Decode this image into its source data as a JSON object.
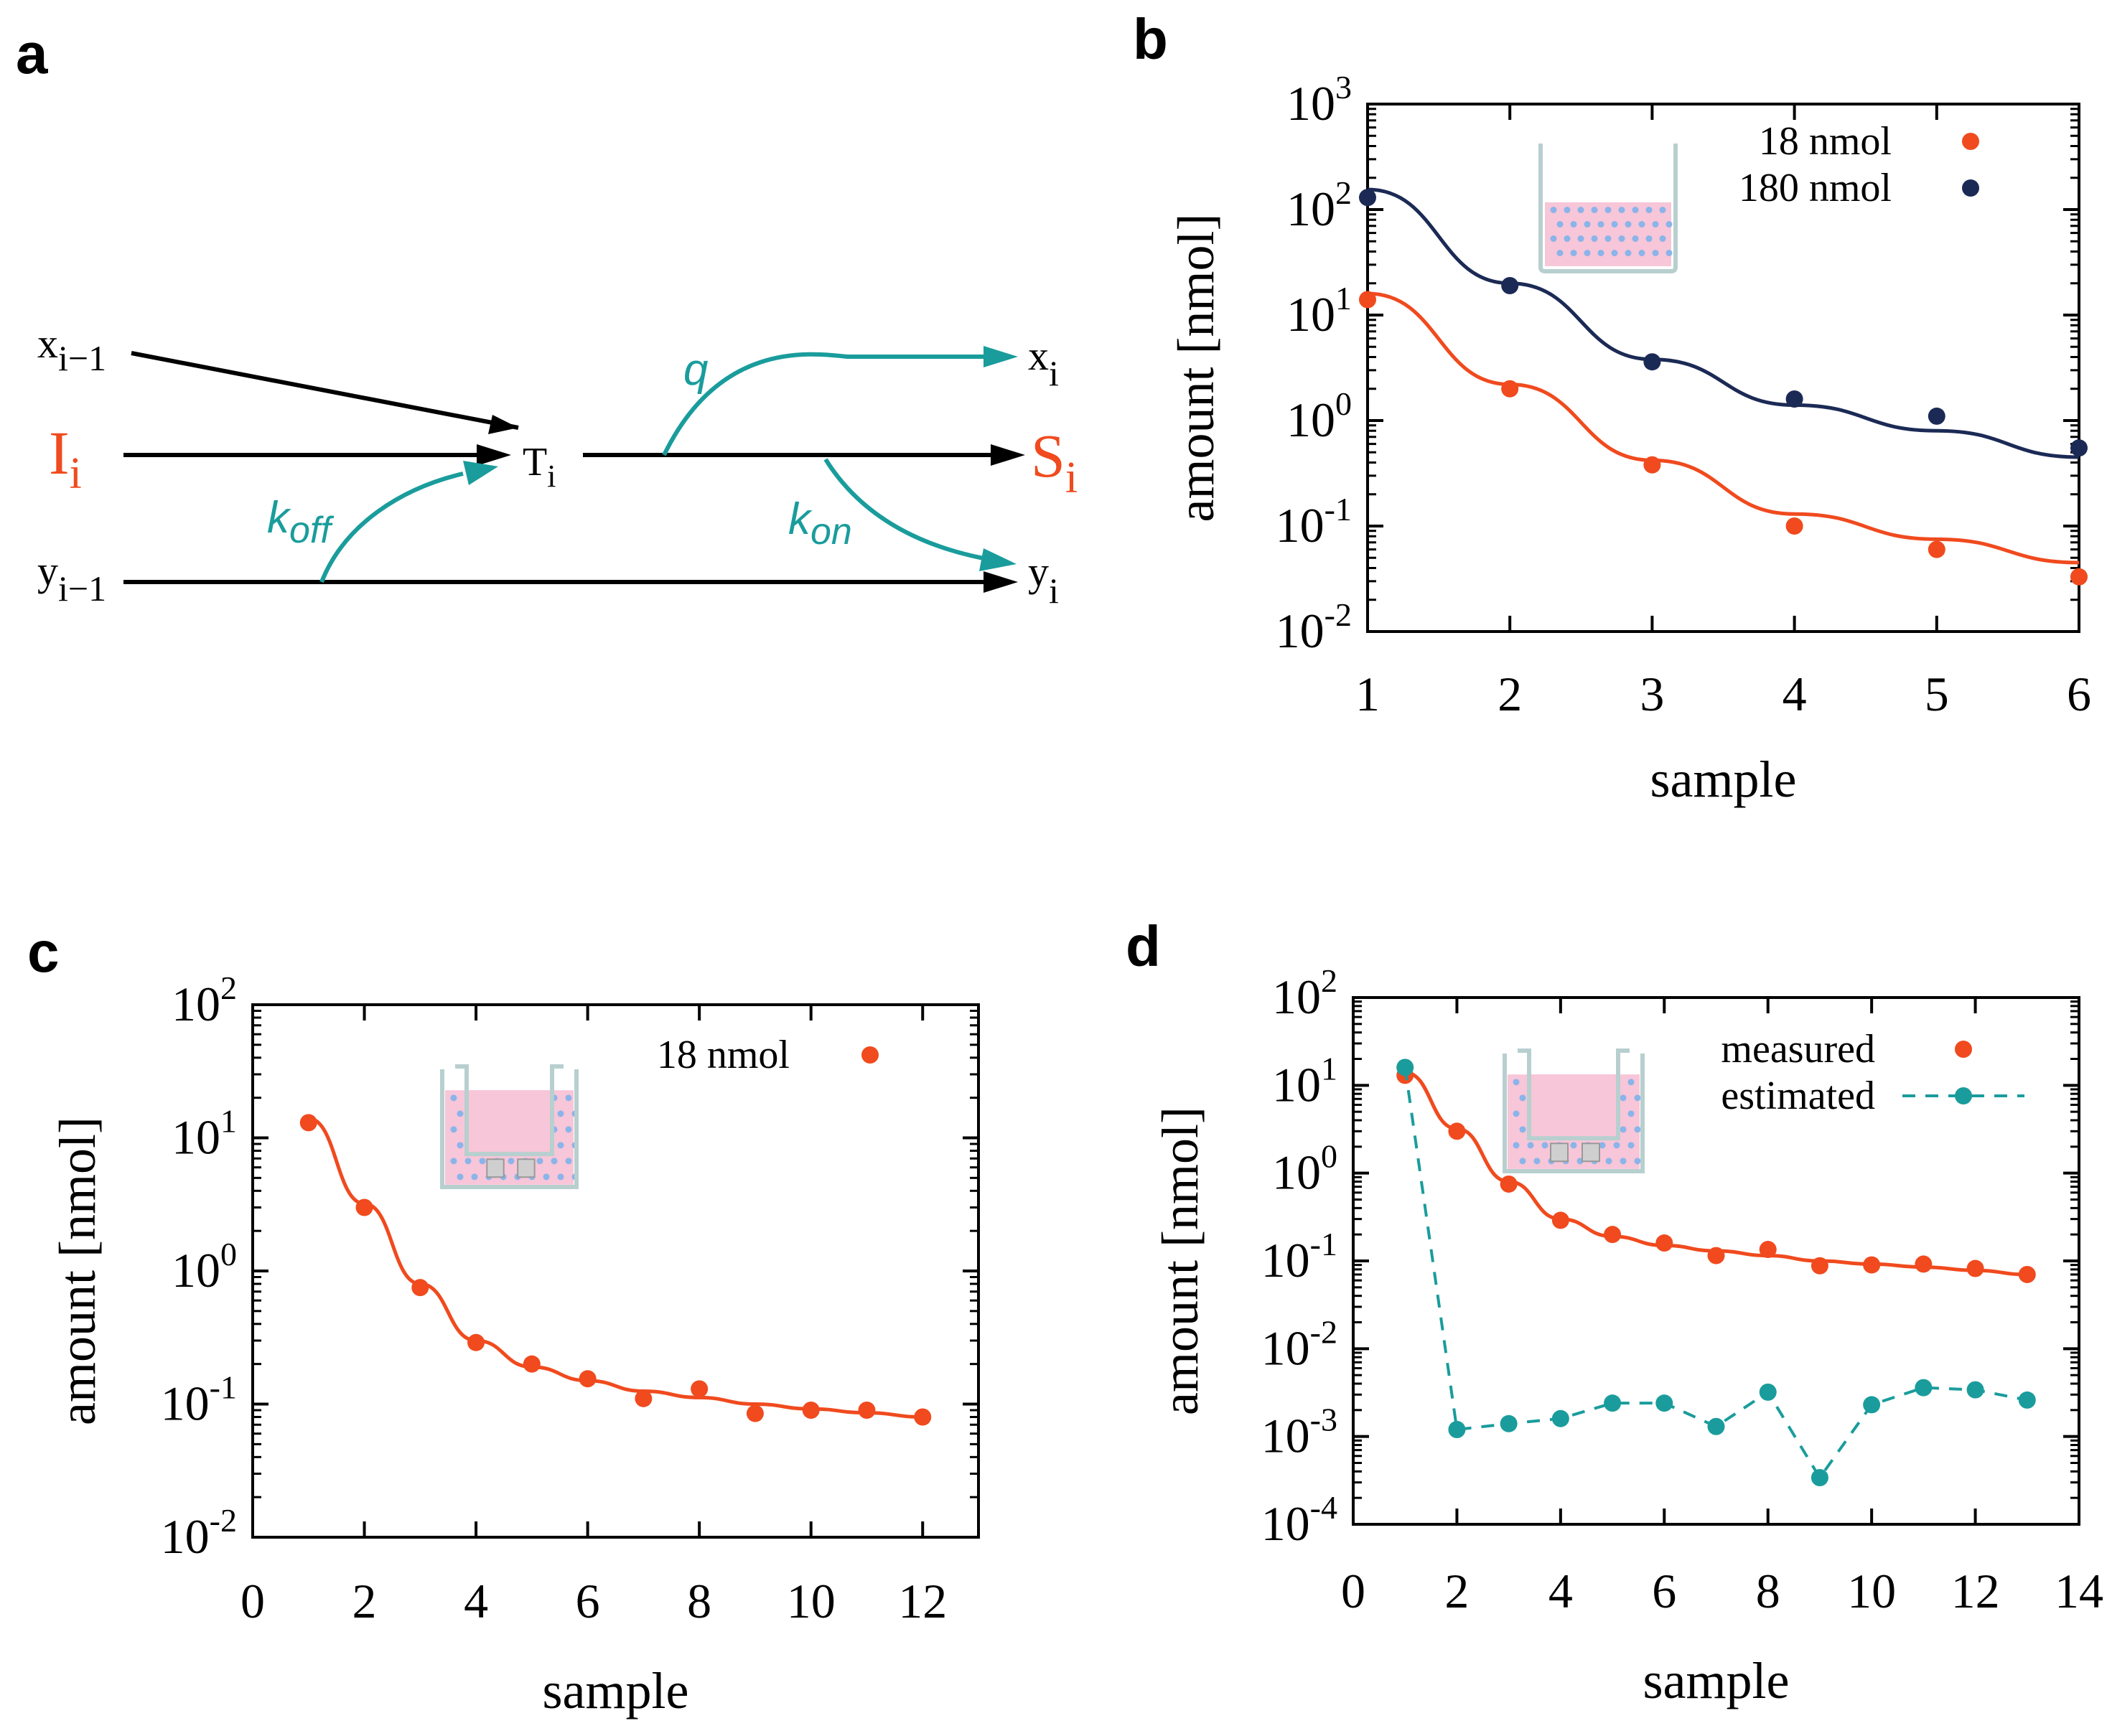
{
  "colors": {
    "red": "#f04a1e",
    "navy": "#1b2a55",
    "teal": "#1a9c9c",
    "black": "#000000",
    "beaker_liquid": "#f7c6d8",
    "beaker_dots": "#8ab4ea",
    "beaker_wall": "#b8cfcf"
  },
  "panels": {
    "a": {
      "letter": "a"
    },
    "b": {
      "letter": "b"
    },
    "c": {
      "letter": "c"
    },
    "d": {
      "letter": "d"
    }
  },
  "diagram": {
    "inputs": {
      "x_prev": {
        "base": "x",
        "sub": "i−1"
      },
      "I": {
        "base": "I",
        "sub": "i"
      },
      "y_prev": {
        "base": "y",
        "sub": "i−1"
      }
    },
    "center": {
      "base": "T",
      "sub": "i"
    },
    "outputs": {
      "x": {
        "base": "x",
        "sub": "i"
      },
      "S": {
        "base": "S",
        "sub": "i"
      },
      "y": {
        "base": "y",
        "sub": "i"
      }
    },
    "rates": {
      "q": "q",
      "koff": {
        "base": "k",
        "sub": "off"
      },
      "kon": {
        "base": "k",
        "sub": "on"
      }
    },
    "arrow_icon": "arrow-head-icon"
  },
  "chart_data": [
    {
      "panel": "b",
      "type": "scatter",
      "yscale": "log",
      "xlabel": "sample",
      "ylabel": "amount [nmol]",
      "xlim": [
        1,
        6
      ],
      "ylim_exp": [
        -2,
        3
      ],
      "xticks": [
        "1",
        "2",
        "3",
        "4",
        "5",
        "6"
      ],
      "yticks": [
        {
          "base": "10",
          "exp": "-2"
        },
        {
          "base": "10",
          "exp": "-1"
        },
        {
          "base": "10",
          "exp": "0"
        },
        {
          "base": "10",
          "exp": "1"
        },
        {
          "base": "10",
          "exp": "2"
        },
        {
          "base": "10",
          "exp": "3"
        }
      ],
      "legend_position": "top-right",
      "inset_icon": "beaker-icon",
      "series": [
        {
          "name": "18 nmol",
          "color": "#f04a1e",
          "marker": "dot",
          "x": [
            1,
            2,
            3,
            4,
            5,
            6
          ],
          "values": [
            14,
            2.0,
            0.38,
            0.1,
            0.06,
            0.033
          ],
          "fit": [
            16,
            2.2,
            0.42,
            0.13,
            0.075,
            0.045
          ]
        },
        {
          "name": "180 nmol",
          "color": "#1b2a55",
          "marker": "dot",
          "x": [
            1,
            2,
            3,
            4,
            5,
            6
          ],
          "values": [
            130,
            19,
            3.6,
            1.6,
            1.1,
            0.55
          ],
          "fit": [
            155,
            20,
            3.8,
            1.4,
            0.8,
            0.45
          ]
        }
      ]
    },
    {
      "panel": "c",
      "type": "scatter",
      "yscale": "log",
      "xlabel": "sample",
      "ylabel": "amount [nmol]",
      "xlim": [
        0,
        13
      ],
      "ylim_exp": [
        -2,
        2
      ],
      "xticks": [
        "0",
        "2",
        "4",
        "6",
        "8",
        "10",
        "12"
      ],
      "xtick_values": [
        0,
        2,
        4,
        6,
        8,
        10,
        12
      ],
      "yticks": [
        {
          "base": "10",
          "exp": "-2"
        },
        {
          "base": "10",
          "exp": "-1"
        },
        {
          "base": "10",
          "exp": "0"
        },
        {
          "base": "10",
          "exp": "1"
        },
        {
          "base": "10",
          "exp": "2"
        }
      ],
      "legend_position": "top-right",
      "inset_icon": "insert-beaker-icon",
      "series": [
        {
          "name": "18 nmol",
          "color": "#f04a1e",
          "marker": "dot",
          "x": [
            1,
            2,
            3,
            4,
            5,
            6,
            7,
            8,
            9,
            10,
            11,
            12
          ],
          "values": [
            13,
            3.0,
            0.75,
            0.29,
            0.2,
            0.155,
            0.11,
            0.13,
            0.085,
            0.09,
            0.09,
            0.08
          ],
          "fit": [
            14,
            3.2,
            0.8,
            0.3,
            0.19,
            0.15,
            0.125,
            0.112,
            0.1,
            0.092,
            0.086,
            0.08
          ]
        }
      ]
    },
    {
      "panel": "d",
      "type": "scatter",
      "yscale": "log",
      "xlabel": "sample",
      "ylabel": "amount [nmol]",
      "xlim": [
        0,
        14
      ],
      "ylim_exp": [
        -4,
        2
      ],
      "xticks": [
        "0",
        "2",
        "4",
        "6",
        "8",
        "10",
        "12",
        "14"
      ],
      "xtick_values": [
        0,
        2,
        4,
        6,
        8,
        10,
        12,
        14
      ],
      "yticks": [
        {
          "base": "10",
          "exp": "-4"
        },
        {
          "base": "10",
          "exp": "-3"
        },
        {
          "base": "10",
          "exp": "-2"
        },
        {
          "base": "10",
          "exp": "-1"
        },
        {
          "base": "10",
          "exp": "0"
        },
        {
          "base": "10",
          "exp": "1"
        },
        {
          "base": "10",
          "exp": "2"
        }
      ],
      "legend_position": "top-right",
      "inset_icon": "insert-beaker-icon",
      "series": [
        {
          "name": "measured",
          "color": "#f04a1e",
          "marker": "dot",
          "x": [
            1,
            2,
            3,
            4,
            5,
            6,
            7,
            8,
            9,
            10,
            11,
            12,
            13
          ],
          "values": [
            13,
            3.0,
            0.75,
            0.29,
            0.2,
            0.16,
            0.115,
            0.135,
            0.088,
            0.09,
            0.092,
            0.082,
            0.07
          ],
          "fit": [
            14,
            3.2,
            0.8,
            0.3,
            0.19,
            0.15,
            0.13,
            0.115,
            0.1,
            0.092,
            0.085,
            0.078,
            0.07
          ]
        },
        {
          "name": "estimated",
          "color": "#1a9c9c",
          "marker": "dot",
          "linestyle": "dashed",
          "x": [
            1,
            2,
            3,
            4,
            5,
            6,
            7,
            8,
            9,
            10,
            11,
            12,
            13
          ],
          "values": [
            16,
            0.0012,
            0.0014,
            0.0016,
            0.0024,
            0.0024,
            0.0013,
            0.0032,
            0.00034,
            0.0023,
            0.0036,
            0.0034,
            0.0026
          ]
        }
      ]
    }
  ]
}
